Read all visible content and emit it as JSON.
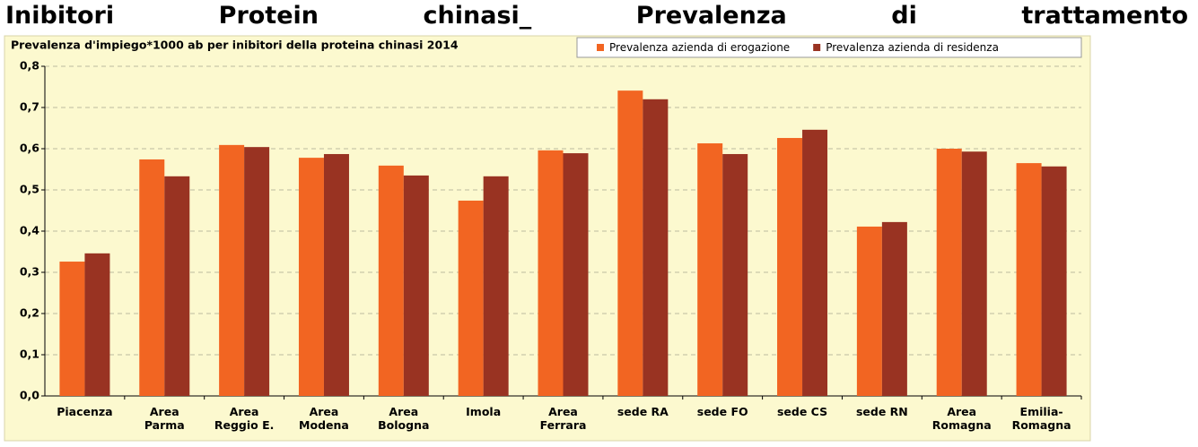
{
  "page_title": "Inibitori Protein chinasi_ Prevalenza di trattamento",
  "chart_data": {
    "type": "bar",
    "title": "Prevalenza d'impiego*1000 ab per inibitori della proteina chinasi 2014",
    "categories": [
      "Piacenza",
      "Area Parma",
      "Area Reggio E.",
      "Area Modena",
      "Area Bologna",
      "Imola",
      "Area Ferrara",
      "sede RA",
      "sede FO",
      "sede CS",
      "sede RN",
      "Area Romagna",
      "Emilia-Romagna"
    ],
    "series": [
      {
        "name": "Prevalenza azienda di erogazione",
        "color": "#f26522",
        "values": [
          0.326,
          0.574,
          0.609,
          0.578,
          0.559,
          0.474,
          0.596,
          0.741,
          0.613,
          0.626,
          0.411,
          0.6,
          0.565
        ]
      },
      {
        "name": "Prevalenza azienda di residenza",
        "color": "#993322",
        "values": [
          0.346,
          0.533,
          0.604,
          0.587,
          0.535,
          0.533,
          0.589,
          0.72,
          0.587,
          0.646,
          0.422,
          0.593,
          0.557
        ]
      }
    ],
    "ylim": [
      0,
      0.8
    ],
    "yticks": [
      {
        "value": 0,
        "label": "0,0"
      },
      {
        "value": 0.1,
        "label": "0,1"
      },
      {
        "value": 0.2,
        "label": "0,2"
      },
      {
        "value": 0.3,
        "label": "0,3"
      },
      {
        "value": 0.4,
        "label": "0,4"
      },
      {
        "value": 0.5,
        "label": "0,5"
      },
      {
        "value": 0.6,
        "label": "0,6"
      },
      {
        "value": 0.7,
        "label": "0,7"
      },
      {
        "value": 0.8,
        "label": "0,8"
      }
    ],
    "grid": true,
    "legend": "top-right"
  }
}
